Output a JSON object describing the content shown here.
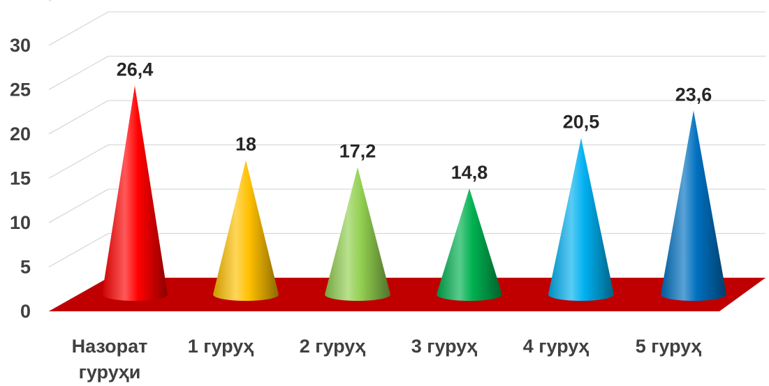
{
  "chart_data": {
    "type": "bar",
    "bar_shape": "cone",
    "categories": [
      "Назорат гуруҳи",
      "1 гуруҳ",
      "2 гуруҳ",
      "3 гуруҳ",
      "4 гуруҳ",
      "5 гуруҳ"
    ],
    "category_lines": [
      [
        "Назорат",
        "гуруҳи"
      ],
      [
        "1 гуруҳ"
      ],
      [
        "2 гуруҳ"
      ],
      [
        "3 гуруҳ"
      ],
      [
        "4 гуруҳ"
      ],
      [
        "5 гуруҳ"
      ]
    ],
    "values": [
      26.4,
      18,
      17.2,
      14.8,
      20.5,
      23.6
    ],
    "data_labels": [
      "26,4",
      "18",
      "17,2",
      "14,8",
      "20,5",
      "23,6"
    ],
    "y_ticks": [
      "0",
      "5",
      "10",
      "15",
      "20",
      "25",
      "30"
    ],
    "ylim": [
      0,
      35
    ],
    "grid": true,
    "legend": "none",
    "floor_color": "#c00000",
    "colors": [
      "#ff0000",
      "#ffc000",
      "#92d050",
      "#00b050",
      "#00b0f0",
      "#0070c0"
    ],
    "title": "",
    "xlabel": "",
    "ylabel": ""
  }
}
